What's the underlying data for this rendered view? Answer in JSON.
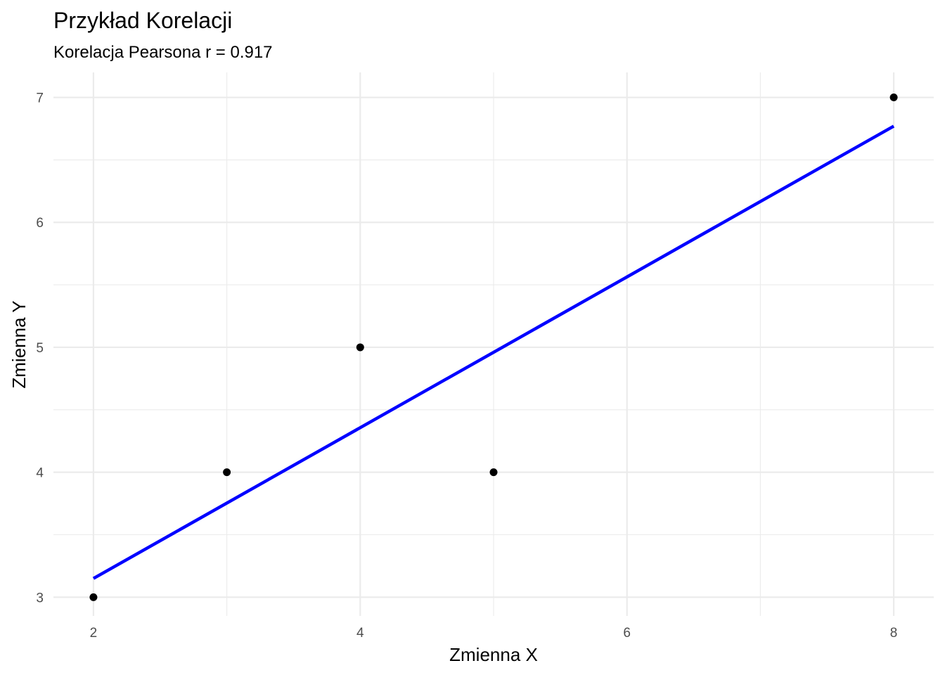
{
  "chart_data": {
    "type": "scatter",
    "title": "Przykład Korelacji",
    "subtitle": "Korelacja Pearsona r = 0.917",
    "xlabel": "Zmienna X",
    "ylabel": "Zmienna Y",
    "xlim": [
      1.7,
      8.3
    ],
    "ylim": [
      2.85,
      7.2
    ],
    "x_ticks": [
      2,
      4,
      6,
      8
    ],
    "x_minor_ticks": [
      3,
      5,
      7
    ],
    "y_ticks": [
      3,
      4,
      5,
      6,
      7
    ],
    "y_minor_ticks": [
      3.5,
      4.5,
      5.5,
      6.5
    ],
    "grid": true,
    "points": [
      {
        "x": 2,
        "y": 3
      },
      {
        "x": 3,
        "y": 4
      },
      {
        "x": 4,
        "y": 5
      },
      {
        "x": 5,
        "y": 4
      },
      {
        "x": 8,
        "y": 7
      }
    ],
    "fit_line": {
      "type": "linear regression",
      "x": [
        2,
        8
      ],
      "y": [
        3.15,
        6.77
      ],
      "color": "#0000ff"
    },
    "point_color": "#000000"
  }
}
